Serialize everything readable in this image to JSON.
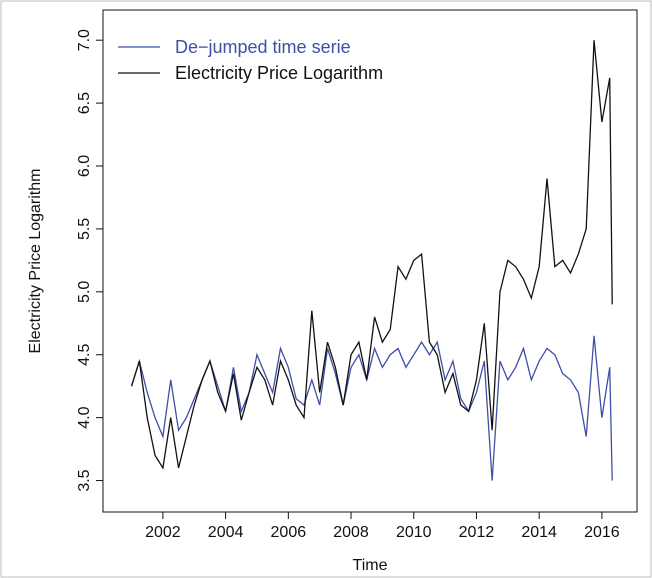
{
  "chart_data": {
    "type": "line",
    "x_label": "Time",
    "y_label": "Electricity Price Logarithm",
    "x": [
      2001.0,
      2001.25,
      2001.5,
      2001.75,
      2002.0,
      2002.25,
      2002.5,
      2002.75,
      2003.0,
      2003.25,
      2003.5,
      2003.75,
      2004.0,
      2004.25,
      2004.5,
      2004.75,
      2005.0,
      2005.25,
      2005.5,
      2005.75,
      2006.0,
      2006.25,
      2006.5,
      2006.75,
      2007.0,
      2007.25,
      2007.5,
      2007.75,
      2008.0,
      2008.25,
      2008.5,
      2008.75,
      2009.0,
      2009.25,
      2009.5,
      2009.75,
      2010.0,
      2010.25,
      2010.5,
      2010.75,
      2011.0,
      2011.25,
      2011.5,
      2011.75,
      2012.0,
      2012.25,
      2012.5,
      2012.75,
      2013.0,
      2013.25,
      2013.5,
      2013.75,
      2014.0,
      2014.25,
      2014.5,
      2014.75,
      2015.0,
      2015.25,
      2015.5,
      2015.75,
      2016.0,
      2016.25,
      2016.33
    ],
    "series": [
      {
        "name": "De−jumped time serie",
        "color": "#3f4fa8",
        "values": [
          4.25,
          4.45,
          4.2,
          4.0,
          3.85,
          4.3,
          3.9,
          4.0,
          4.15,
          4.3,
          4.45,
          4.25,
          4.05,
          4.4,
          4.05,
          4.2,
          4.5,
          4.35,
          4.2,
          4.55,
          4.4,
          4.15,
          4.1,
          4.3,
          4.1,
          4.55,
          4.35,
          4.1,
          4.4,
          4.5,
          4.3,
          4.55,
          4.4,
          4.5,
          4.55,
          4.4,
          4.5,
          4.6,
          4.5,
          4.6,
          4.3,
          4.45,
          4.15,
          4.05,
          4.2,
          4.45,
          3.5,
          4.45,
          4.3,
          4.4,
          4.55,
          4.3,
          4.45,
          4.55,
          4.5,
          4.35,
          4.3,
          4.2,
          3.85,
          4.65,
          4.0,
          4.4,
          3.5
        ]
      },
      {
        "name": "Electricity Price Logarithm",
        "color": "#111111",
        "values": [
          4.25,
          4.45,
          4.0,
          3.7,
          3.6,
          4.0,
          3.6,
          3.85,
          4.1,
          4.3,
          4.45,
          4.2,
          4.05,
          4.35,
          3.98,
          4.2,
          4.4,
          4.3,
          4.1,
          4.45,
          4.3,
          4.1,
          4.0,
          4.85,
          4.2,
          4.6,
          4.4,
          4.1,
          4.5,
          4.6,
          4.3,
          4.8,
          4.6,
          4.7,
          5.2,
          5.1,
          5.25,
          5.3,
          4.6,
          4.5,
          4.2,
          4.35,
          4.1,
          4.05,
          4.3,
          4.75,
          3.9,
          5.0,
          5.25,
          5.2,
          5.1,
          4.95,
          5.2,
          5.9,
          5.2,
          5.25,
          5.15,
          5.3,
          5.5,
          7.0,
          6.35,
          6.7,
          4.9
        ]
      }
    ],
    "xlim": [
      2000.09,
      2017.12
    ],
    "xticks": [
      2002,
      2004,
      2006,
      2008,
      2010,
      2012,
      2014,
      2016
    ],
    "ylim": [
      3.25,
      7.24
    ],
    "yticks": [
      3.5,
      {
        "value": 4,
        "label": "4.0"
      },
      4.5,
      {
        "value": 5,
        "label": "5.0"
      },
      5.5,
      {
        "value": 6,
        "label": "6.0"
      },
      6.5,
      {
        "value": 7,
        "label": "7.0"
      }
    ],
    "legend": "top-left"
  }
}
